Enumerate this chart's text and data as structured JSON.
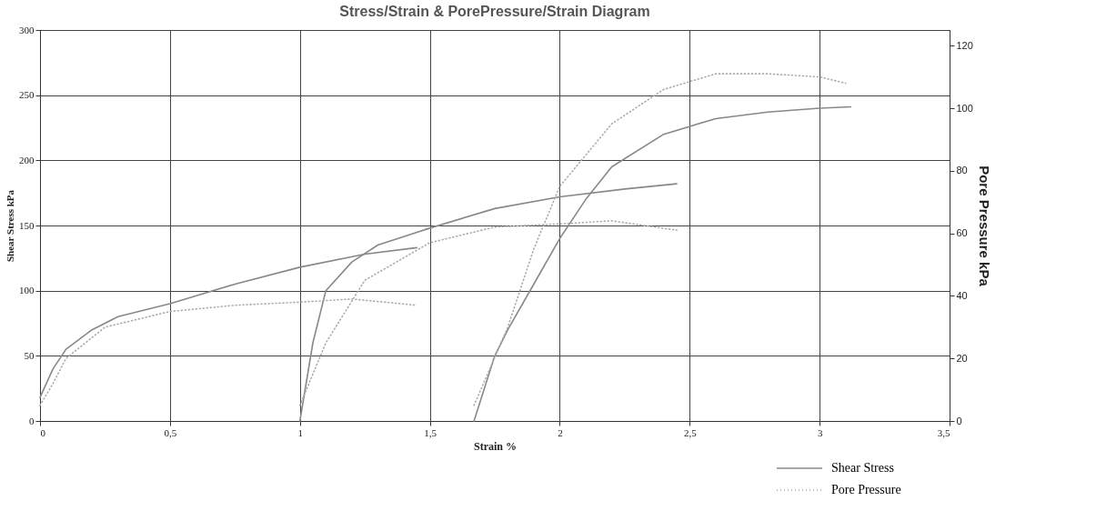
{
  "chart_data": {
    "type": "line",
    "title": "Stress/Strain & PorePressure/Strain Diagram",
    "xlabel": "Strain %",
    "ylabel": "Shear Stress  kPa",
    "y2label": "Pore Pressure kPa",
    "xlim": [
      0,
      3.5
    ],
    "xticks": [
      0,
      {
        "value": 0.5,
        "label": "0,5"
      },
      1,
      {
        "value": 1.5,
        "label": "1,5"
      },
      2,
      {
        "value": 2.5,
        "label": "2,5"
      },
      3,
      {
        "value": 3.5,
        "label": "3,5"
      }
    ],
    "ylim": [
      0,
      300
    ],
    "yticks": [
      0,
      50,
      100,
      150,
      200,
      250,
      300
    ],
    "y2lim": [
      0,
      125
    ],
    "y2ticks": [
      0,
      20,
      40,
      60,
      80,
      100,
      120
    ],
    "grid": true,
    "legend": "bottom right",
    "series": [
      {
        "name": "Shear Stress",
        "color": "#888888",
        "line_style": "solid",
        "x": [
          0,
          0.05,
          0.1,
          0.2,
          0.3,
          0.5,
          0.75,
          1.0,
          1.25,
          1.45
        ],
        "values": [
          18,
          40,
          55,
          70,
          80,
          90,
          105,
          118,
          128,
          133
        ]
      },
      {
        "color": "#888888",
        "line_style": "solid",
        "x": [
          1.0,
          1.05,
          1.1,
          1.2,
          1.3,
          1.5,
          1.75,
          2.0,
          2.25,
          2.45
        ],
        "values": [
          0,
          60,
          100,
          122,
          135,
          148,
          163,
          172,
          178,
          182
        ]
      },
      {
        "color": "#888888",
        "line_style": "solid",
        "x": [
          1.67,
          1.75,
          1.8,
          1.9,
          2.0,
          2.1,
          2.2,
          2.4,
          2.6,
          2.8,
          3.0,
          3.12
        ],
        "values": [
          0,
          50,
          70,
          105,
          140,
          170,
          195,
          220,
          232,
          237,
          240,
          241
        ]
      },
      {
        "name": "Pore Pressure",
        "color": "#aaaaaa",
        "line_style": "dotted",
        "axis": "y2",
        "x": [
          0,
          0.05,
          0.1,
          0.25,
          0.5,
          0.75,
          1.0,
          1.2,
          1.45
        ],
        "values": [
          5,
          12,
          20,
          30,
          35,
          37,
          38,
          39,
          37
        ]
      },
      {
        "color": "#aaaaaa",
        "line_style": "dotted",
        "axis": "y2",
        "x": [
          1.0,
          1.05,
          1.1,
          1.25,
          1.5,
          1.75,
          2.0,
          2.2,
          2.45
        ],
        "values": [
          5,
          15,
          25,
          45,
          57,
          62,
          63,
          64,
          61
        ]
      },
      {
        "color": "#aaaaaa",
        "line_style": "dotted",
        "axis": "y2",
        "x": [
          1.67,
          1.8,
          1.9,
          2.0,
          2.2,
          2.4,
          2.6,
          2.8,
          3.0,
          3.1
        ],
        "values": [
          5,
          30,
          55,
          75,
          95,
          106,
          111,
          111,
          110,
          108
        ]
      }
    ]
  }
}
